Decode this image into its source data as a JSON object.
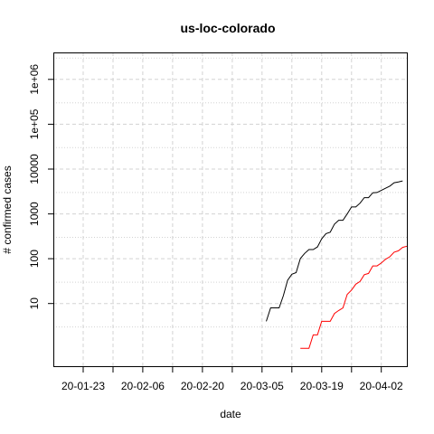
{
  "chart_data": {
    "type": "line",
    "title": "us-loc-colorado",
    "xlabel": "date",
    "ylabel": "# confirmed cases",
    "y_scale": "log10",
    "ylim": [
      0.4,
      4000000
    ],
    "xlim": [
      "2020-01-16",
      "2020-04-08"
    ],
    "grid": true,
    "x_ticks": [
      {
        "date": "2020-01-23",
        "label": "20-01-23"
      },
      {
        "date": "2020-02-06",
        "label": "20-02-06"
      },
      {
        "date": "2020-02-20",
        "label": "20-02-20"
      },
      {
        "date": "2020-03-05",
        "label": "20-03-05"
      },
      {
        "date": "2020-03-19",
        "label": "20-03-19"
      },
      {
        "date": "2020-04-02",
        "label": "20-04-02"
      }
    ],
    "y_ticks": [
      {
        "value": 10,
        "label": "10"
      },
      {
        "value": 100,
        "label": "100"
      },
      {
        "value": 1000,
        "label": "1000"
      },
      {
        "value": 10000,
        "label": "10000"
      },
      {
        "value": 100000,
        "label": "1e+05"
      },
      {
        "value": 1000000,
        "label": "1e+06"
      }
    ],
    "series": [
      {
        "color": "#000000",
        "points": [
          [
            "2020-03-06",
            4
          ],
          [
            "2020-03-07",
            8
          ],
          [
            "2020-03-08",
            8
          ],
          [
            "2020-03-09",
            8
          ],
          [
            "2020-03-10",
            15
          ],
          [
            "2020-03-11",
            33
          ],
          [
            "2020-03-12",
            45
          ],
          [
            "2020-03-13",
            49
          ],
          [
            "2020-03-14",
            101
          ],
          [
            "2020-03-15",
            131
          ],
          [
            "2020-03-16",
            160
          ],
          [
            "2020-03-17",
            160
          ],
          [
            "2020-03-18",
            183
          ],
          [
            "2020-03-19",
            277
          ],
          [
            "2020-03-20",
            363
          ],
          [
            "2020-03-21",
            390
          ],
          [
            "2020-03-22",
            591
          ],
          [
            "2020-03-23",
            720
          ],
          [
            "2020-03-24",
            720
          ],
          [
            "2020-03-25",
            1000
          ],
          [
            "2020-03-26",
            1430
          ],
          [
            "2020-03-27",
            1430
          ],
          [
            "2020-03-28",
            1734
          ],
          [
            "2020-03-29",
            2307
          ],
          [
            "2020-03-30",
            2307
          ],
          [
            "2020-03-31",
            2966
          ],
          [
            "2020-04-01",
            3000
          ],
          [
            "2020-04-02",
            3342
          ],
          [
            "2020-04-03",
            3728
          ],
          [
            "2020-04-04",
            4173
          ],
          [
            "2020-04-05",
            4950
          ],
          [
            "2020-04-06",
            5172
          ],
          [
            "2020-04-07",
            5429
          ]
        ]
      },
      {
        "color": "#ff0000",
        "points": [
          [
            "2020-03-14",
            1
          ],
          [
            "2020-03-15",
            1
          ],
          [
            "2020-03-16",
            1
          ],
          [
            "2020-03-17",
            2
          ],
          [
            "2020-03-18",
            2
          ],
          [
            "2020-03-19",
            4
          ],
          [
            "2020-03-20",
            4
          ],
          [
            "2020-03-21",
            4
          ],
          [
            "2020-03-22",
            6
          ],
          [
            "2020-03-23",
            7
          ],
          [
            "2020-03-24",
            8
          ],
          [
            "2020-03-25",
            16
          ],
          [
            "2020-03-26",
            20
          ],
          [
            "2020-03-27",
            27
          ],
          [
            "2020-03-28",
            31
          ],
          [
            "2020-03-29",
            44
          ],
          [
            "2020-03-30",
            47
          ],
          [
            "2020-03-31",
            69
          ],
          [
            "2020-04-01",
            69
          ],
          [
            "2020-04-02",
            80
          ],
          [
            "2020-04-03",
            97
          ],
          [
            "2020-04-04",
            111
          ],
          [
            "2020-04-05",
            140
          ],
          [
            "2020-04-06",
            150
          ],
          [
            "2020-04-07",
            179
          ],
          [
            "2020-04-08",
            190
          ]
        ]
      }
    ]
  }
}
